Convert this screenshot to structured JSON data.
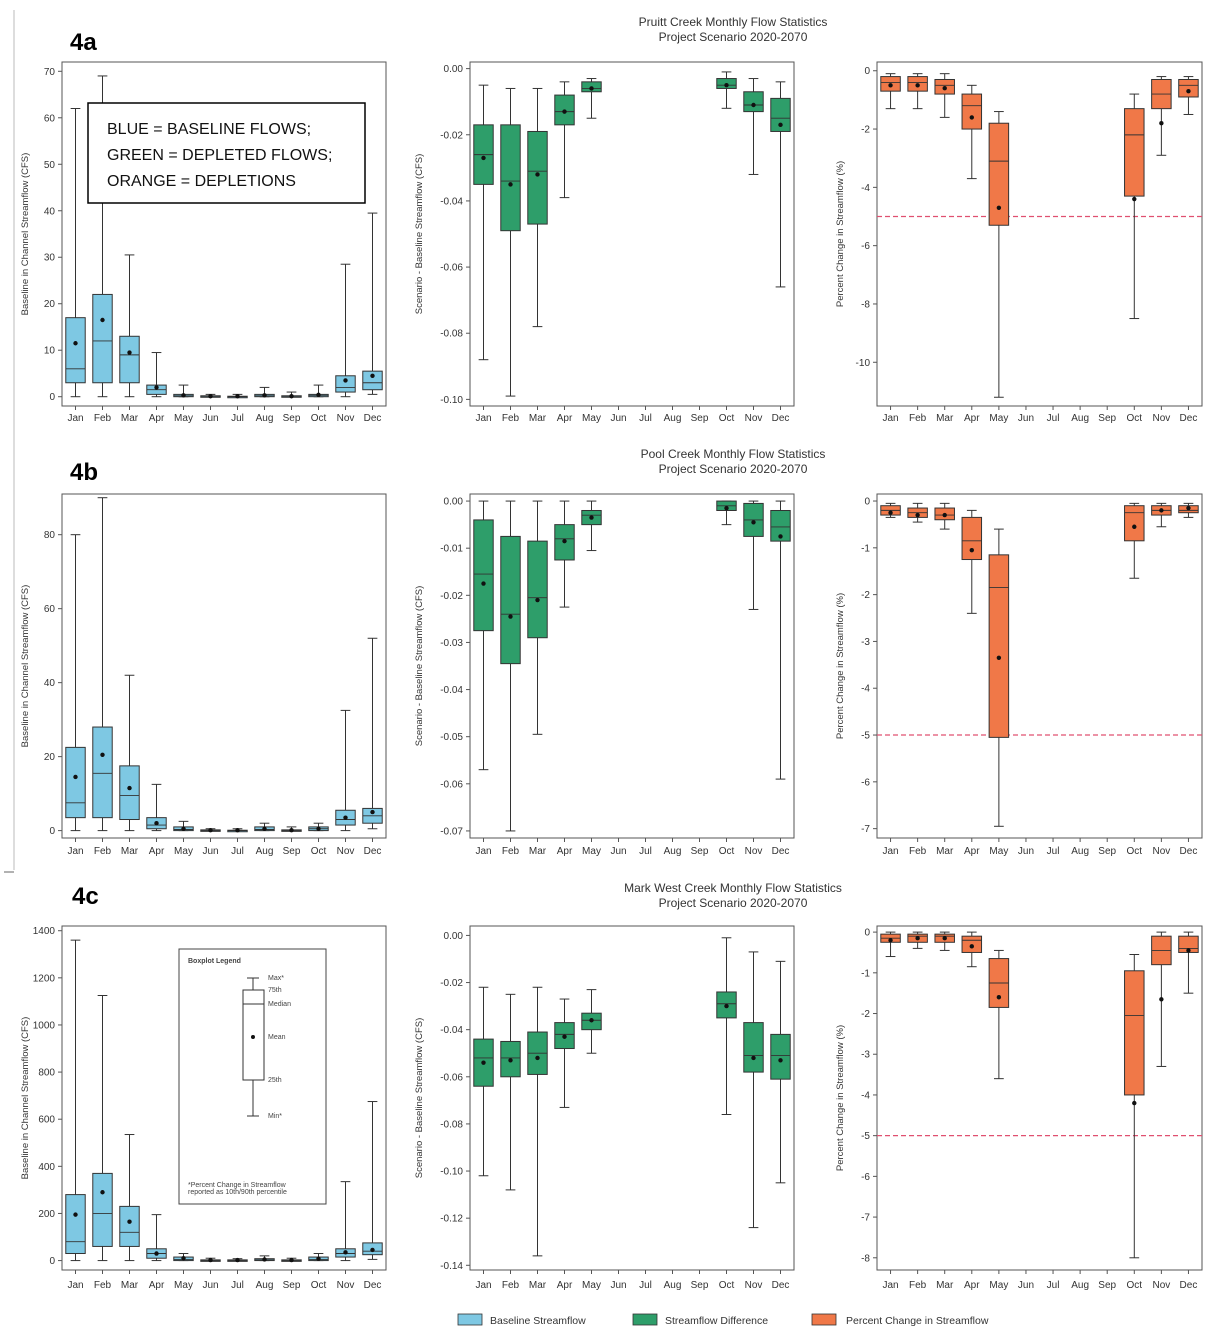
{
  "colors": {
    "baseline": "#7ec8e3",
    "difference": "#2e9e6a",
    "percent": "#f07848",
    "threshold": "#e05070"
  },
  "note_lines": [
    "BLUE  =  BASELINE  FLOWS;",
    "GREEN = DEPLETED FLOWS;",
    "ORANGE = DEPLETIONS"
  ],
  "box_legend": {
    "title": "Boxplot Legend",
    "labels": [
      "Max*",
      "75th",
      "Median",
      "Mean",
      "25th",
      "Min*"
    ],
    "footnote_lines": [
      "*Percent Change in Streamflow",
      "reported as 10th/90th percentile"
    ]
  },
  "legend": [
    {
      "label": "Baseline Streamflow",
      "color": "#7ec8e3"
    },
    {
      "label": "Streamflow Difference",
      "color": "#2e9e6a"
    },
    {
      "label": "Percent Change in Streamflow",
      "color": "#f07848"
    }
  ],
  "chart_data": [
    {
      "panel": "4a",
      "type": "boxplot",
      "title": "Pruitt Creek Monthly Flow Statistics",
      "subtitle": "Project Scenario 2020-2070",
      "months": [
        "Jan",
        "Feb",
        "Mar",
        "Apr",
        "May",
        "Jun",
        "Jul",
        "Aug",
        "Sep",
        "Oct",
        "Nov",
        "Dec"
      ],
      "subplots": [
        {
          "kind": "baseline",
          "ylabel": "Baseline in Channel Streamflow (CFS)",
          "yticks": [
            0,
            10,
            20,
            30,
            40,
            50,
            60,
            70
          ],
          "ylim": [
            -2,
            72
          ],
          "boxes": [
            [
              0,
              3,
              6,
              17,
              62,
              11.5
            ],
            [
              0,
              3,
              12,
              22,
              69,
              16.5
            ],
            [
              0,
              3,
              9,
              13,
              30.5,
              9.5
            ],
            [
              0,
              0.5,
              1.5,
              2.5,
              9.5,
              2
            ],
            [
              0,
              0,
              0.2,
              0.5,
              2.5,
              0.3
            ],
            [
              0,
              0,
              0,
              0.2,
              0.5,
              0.1
            ],
            [
              0,
              0,
              0,
              0.1,
              0.5,
              0.1
            ],
            [
              0,
              0,
              0.2,
              0.5,
              2,
              0.3
            ],
            [
              0,
              0,
              0,
              0.2,
              1,
              0.1
            ],
            [
              0,
              0,
              0.3,
              0.5,
              2.5,
              0.4
            ],
            [
              0,
              1,
              2,
              4.5,
              28.5,
              3.5
            ],
            [
              0.5,
              1.5,
              3,
              5.5,
              39.5,
              4.5
            ]
          ]
        },
        {
          "kind": "difference",
          "ylabel": "Scenario - Baseline Streamflow (CFS)",
          "yticks": [
            0,
            -0.02,
            -0.04,
            -0.06,
            -0.08,
            -0.1
          ],
          "ylim": [
            -0.102,
            0.002
          ],
          "boxes": [
            [
              -0.088,
              -0.035,
              -0.026,
              -0.017,
              -0.005,
              -0.027
            ],
            [
              -0.099,
              -0.049,
              -0.034,
              -0.017,
              -0.006,
              -0.035
            ],
            [
              -0.078,
              -0.047,
              -0.031,
              -0.019,
              -0.006,
              -0.032
            ],
            [
              -0.039,
              -0.017,
              -0.013,
              -0.008,
              -0.004,
              -0.013
            ],
            [
              -0.015,
              -0.007,
              -0.006,
              -0.004,
              -0.003,
              -0.006
            ],
            null,
            null,
            null,
            null,
            [
              -0.012,
              -0.006,
              -0.005,
              -0.003,
              -0.001,
              -0.005
            ],
            [
              -0.032,
              -0.013,
              -0.011,
              -0.007,
              -0.003,
              -0.011
            ],
            [
              -0.066,
              -0.019,
              -0.015,
              -0.009,
              -0.004,
              -0.017
            ]
          ]
        },
        {
          "kind": "percent",
          "ylabel": "Percent Change in Streamflow (%)",
          "yticks": [
            0,
            -2,
            -4,
            -6,
            -8,
            -10
          ],
          "ylim": [
            -11.5,
            0.3
          ],
          "threshold": -5,
          "boxes": [
            [
              -1.3,
              -0.7,
              -0.4,
              -0.2,
              -0.1,
              -0.5
            ],
            [
              -1.3,
              -0.7,
              -0.4,
              -0.2,
              -0.1,
              -0.5
            ],
            [
              -1.6,
              -0.8,
              -0.5,
              -0.3,
              -0.1,
              -0.6
            ],
            [
              -3.7,
              -2,
              -1.2,
              -0.8,
              -0.5,
              -1.6
            ],
            [
              -11.2,
              -5.3,
              -3.1,
              -1.8,
              -1.4,
              -4.7
            ],
            null,
            null,
            null,
            null,
            [
              -8.5,
              -4.3,
              -2.2,
              -1.3,
              -0.8,
              -4.4
            ],
            [
              -2.9,
              -1.3,
              -0.8,
              -0.3,
              -0.2,
              -1.8
            ],
            [
              -1.5,
              -0.9,
              -0.5,
              -0.3,
              -0.2,
              -0.7
            ]
          ]
        }
      ]
    },
    {
      "panel": "4b",
      "type": "boxplot",
      "title": "Pool Creek Monthly Flow Statistics",
      "subtitle": "Project Scenario 2020-2070",
      "months": [
        "Jan",
        "Feb",
        "Mar",
        "Apr",
        "May",
        "Jun",
        "Jul",
        "Aug",
        "Sep",
        "Oct",
        "Nov",
        "Dec"
      ],
      "subplots": [
        {
          "kind": "baseline",
          "ylabel": "Baseline in Channel Streamflow (CFS)",
          "yticks": [
            0,
            20,
            40,
            60,
            80
          ],
          "ylim": [
            -2,
            91
          ],
          "boxes": [
            [
              0,
              3.5,
              7.5,
              22.5,
              80,
              14.5
            ],
            [
              0,
              3.5,
              15.5,
              28,
              90,
              20.5
            ],
            [
              0,
              3,
              9.5,
              17.5,
              42,
              11.5
            ],
            [
              0,
              0.5,
              1.5,
              3.5,
              12.5,
              2
            ],
            [
              0,
              0,
              0.3,
              1,
              2.5,
              0.5
            ],
            [
              0,
              0,
              0,
              0.2,
              0.5,
              0.1
            ],
            [
              0,
              0,
              0,
              0.1,
              0.5,
              0.1
            ],
            [
              0,
              0,
              0.3,
              1,
              2,
              0.5
            ],
            [
              0,
              0,
              0,
              0.2,
              1,
              0.1
            ],
            [
              0,
              0,
              0.5,
              1,
              2,
              0.5
            ],
            [
              0,
              1.5,
              3,
              5.5,
              32.5,
              3.5
            ],
            [
              0.5,
              2,
              4,
              6,
              52,
              5
            ]
          ]
        },
        {
          "kind": "difference",
          "ylabel": "Scenario - Baseline Streamflow (CFS)",
          "yticks": [
            0,
            -0.01,
            -0.02,
            -0.03,
            -0.04,
            -0.05,
            -0.06,
            -0.07
          ],
          "ylim": [
            -0.0715,
            0.0015
          ],
          "boxes": [
            [
              -0.057,
              -0.0275,
              -0.0155,
              -0.004,
              0,
              -0.0175
            ],
            [
              -0.07,
              -0.0345,
              -0.024,
              -0.0075,
              0,
              -0.0245
            ],
            [
              -0.0495,
              -0.029,
              -0.0205,
              -0.0085,
              0,
              -0.021
            ],
            [
              -0.0225,
              -0.0125,
              -0.008,
              -0.005,
              0,
              -0.0085
            ],
            [
              -0.0105,
              -0.005,
              -0.003,
              -0.002,
              0,
              -0.0035
            ],
            null,
            null,
            null,
            null,
            [
              -0.005,
              -0.002,
              -0.001,
              0,
              0,
              -0.0015
            ],
            [
              -0.023,
              -0.0075,
              -0.004,
              -0.0005,
              0,
              -0.0045
            ],
            [
              -0.059,
              -0.0085,
              -0.0055,
              -0.002,
              0,
              -0.0075
            ]
          ]
        },
        {
          "kind": "percent",
          "ylabel": "Percent Change in Streamflow (%)",
          "yticks": [
            0,
            -1,
            -2,
            -3,
            -4,
            -5,
            -6,
            -7
          ],
          "ylim": [
            -7.2,
            0.15
          ],
          "threshold": -5,
          "boxes": [
            [
              -0.35,
              -0.3,
              -0.2,
              -0.1,
              -0.05,
              -0.25
            ],
            [
              -0.45,
              -0.35,
              -0.25,
              -0.15,
              -0.05,
              -0.3
            ],
            [
              -0.6,
              -0.4,
              -0.3,
              -0.15,
              -0.05,
              -0.3
            ],
            [
              -2.4,
              -1.25,
              -0.85,
              -0.35,
              -0.2,
              -1.05
            ],
            [
              -6.95,
              -5.05,
              -1.85,
              -1.15,
              -0.6,
              -3.35
            ],
            null,
            null,
            null,
            null,
            [
              -1.65,
              -0.85,
              -0.25,
              -0.1,
              -0.05,
              -0.55
            ],
            [
              -0.55,
              -0.3,
              -0.2,
              -0.1,
              -0.05,
              -0.2
            ],
            [
              -0.35,
              -0.25,
              -0.2,
              -0.1,
              -0.05,
              -0.15
            ]
          ]
        }
      ]
    },
    {
      "panel": "4c",
      "type": "boxplot",
      "title": "Mark West Creek Monthly Flow Statistics",
      "subtitle": "Project Scenario 2020-2070",
      "months": [
        "Jan",
        "Feb",
        "Mar",
        "Apr",
        "May",
        "Jun",
        "Jul",
        "Aug",
        "Sep",
        "Oct",
        "Nov",
        "Dec"
      ],
      "subplots": [
        {
          "kind": "baseline",
          "ylabel": "Baseline in Channel Streamflow (CFS)",
          "yticks": [
            0,
            200,
            400,
            600,
            800,
            1000,
            1200,
            1400
          ],
          "ylim": [
            -40,
            1420
          ],
          "boxes": [
            [
              0,
              30,
              80,
              280,
              1360,
              195
            ],
            [
              0,
              60,
              200,
              370,
              1125,
              290
            ],
            [
              0,
              60,
              120,
              230,
              535,
              165
            ],
            [
              0,
              10,
              30,
              50,
              195,
              30
            ],
            [
              0,
              0,
              5,
              15,
              30,
              10
            ],
            [
              0,
              0,
              0,
              3,
              10,
              2
            ],
            [
              0,
              0,
              0,
              3,
              8,
              2
            ],
            [
              0,
              0,
              3,
              8,
              20,
              5
            ],
            [
              0,
              0,
              0,
              3,
              10,
              2
            ],
            [
              0,
              0,
              5,
              15,
              30,
              8
            ],
            [
              0,
              15,
              30,
              50,
              335,
              35
            ],
            [
              5,
              25,
              40,
              75,
              675,
              45
            ]
          ]
        },
        {
          "kind": "difference",
          "ylabel": "Scenario - Baseline Streamflow (CFS)",
          "yticks": [
            0,
            -0.02,
            -0.04,
            -0.06,
            -0.08,
            -0.1,
            -0.12,
            -0.14
          ],
          "ylim": [
            -0.142,
            0.004
          ],
          "boxes": [
            [
              -0.102,
              -0.064,
              -0.052,
              -0.044,
              -0.022,
              -0.054
            ],
            [
              -0.108,
              -0.06,
              -0.052,
              -0.045,
              -0.025,
              -0.053
            ],
            [
              -0.136,
              -0.059,
              -0.05,
              -0.041,
              -0.022,
              -0.052
            ],
            [
              -0.073,
              -0.048,
              -0.042,
              -0.037,
              -0.027,
              -0.043
            ],
            [
              -0.05,
              -0.04,
              -0.036,
              -0.033,
              -0.023,
              -0.036
            ],
            null,
            null,
            null,
            null,
            [
              -0.076,
              -0.035,
              -0.029,
              -0.024,
              -0.001,
              -0.03
            ],
            [
              -0.124,
              -0.058,
              -0.051,
              -0.037,
              -0.007,
              -0.052
            ],
            [
              -0.105,
              -0.061,
              -0.051,
              -0.042,
              -0.011,
              -0.053
            ]
          ]
        },
        {
          "kind": "percent",
          "ylabel": "Percent Change in Streamflow (%)",
          "yticks": [
            0,
            -1,
            -2,
            -3,
            -4,
            -5,
            -6,
            -7,
            -8
          ],
          "ylim": [
            -8.3,
            0.15
          ],
          "threshold": -5,
          "boxes": [
            [
              -0.6,
              -0.25,
              -0.15,
              -0.05,
              0,
              -0.2
            ],
            [
              -0.4,
              -0.25,
              -0.1,
              -0.05,
              0,
              -0.15
            ],
            [
              -0.45,
              -0.25,
              -0.1,
              -0.05,
              0,
              -0.15
            ],
            [
              -0.85,
              -0.5,
              -0.2,
              -0.1,
              0,
              -0.35
            ],
            [
              -3.6,
              -1.85,
              -1.25,
              -0.65,
              -0.45,
              -1.6
            ],
            null,
            null,
            null,
            null,
            [
              -8,
              -4,
              -2.05,
              -0.95,
              -0.55,
              -4.2
            ],
            [
              -3.3,
              -0.8,
              -0.45,
              -0.1,
              0,
              -1.65
            ],
            [
              -1.5,
              -0.5,
              -0.4,
              -0.1,
              0,
              -0.45
            ]
          ]
        }
      ]
    }
  ]
}
